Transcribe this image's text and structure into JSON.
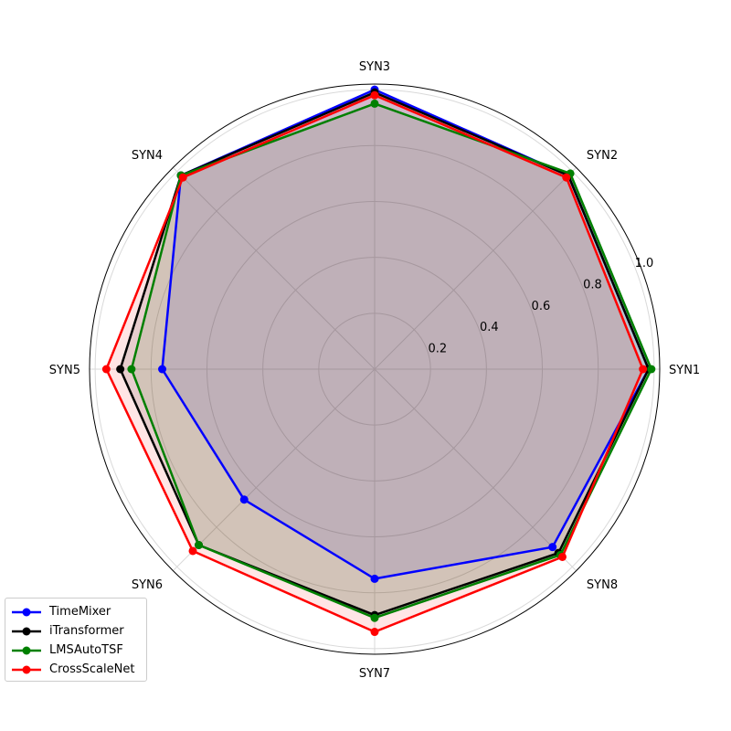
{
  "chart_data": {
    "type": "radar",
    "title": "",
    "categories": [
      "SYN1",
      "SYN2",
      "SYN3",
      "SYN4",
      "SYN5",
      "SYN6",
      "SYN7",
      "SYN8"
    ],
    "rlim": [
      0,
      1.02
    ],
    "rticks": [
      0.2,
      0.4,
      0.6,
      0.8,
      1.0
    ],
    "rtick_labels": [
      "0.2",
      "0.4",
      "0.6",
      "0.8",
      "1.0"
    ],
    "grid": true,
    "legend_position": "lower-left",
    "series": [
      {
        "name": "TimeMixer",
        "color": "#0000ff",
        "values": [
          0.98,
          0.98,
          1.0,
          0.98,
          0.76,
          0.66,
          0.75,
          0.9
        ]
      },
      {
        "name": "iTransformer",
        "color": "#000000",
        "values": [
          0.98,
          0.98,
          0.99,
          0.98,
          0.91,
          0.89,
          0.88,
          0.93
        ]
      },
      {
        "name": "LMSAutoTSF",
        "color": "#008000",
        "values": [
          0.99,
          0.99,
          0.95,
          0.98,
          0.87,
          0.89,
          0.89,
          0.94
        ]
      },
      {
        "name": "CrossScaleNet",
        "color": "#ff0000",
        "values": [
          0.96,
          0.97,
          0.98,
          0.97,
          0.96,
          0.92,
          0.94,
          0.95
        ]
      }
    ]
  }
}
